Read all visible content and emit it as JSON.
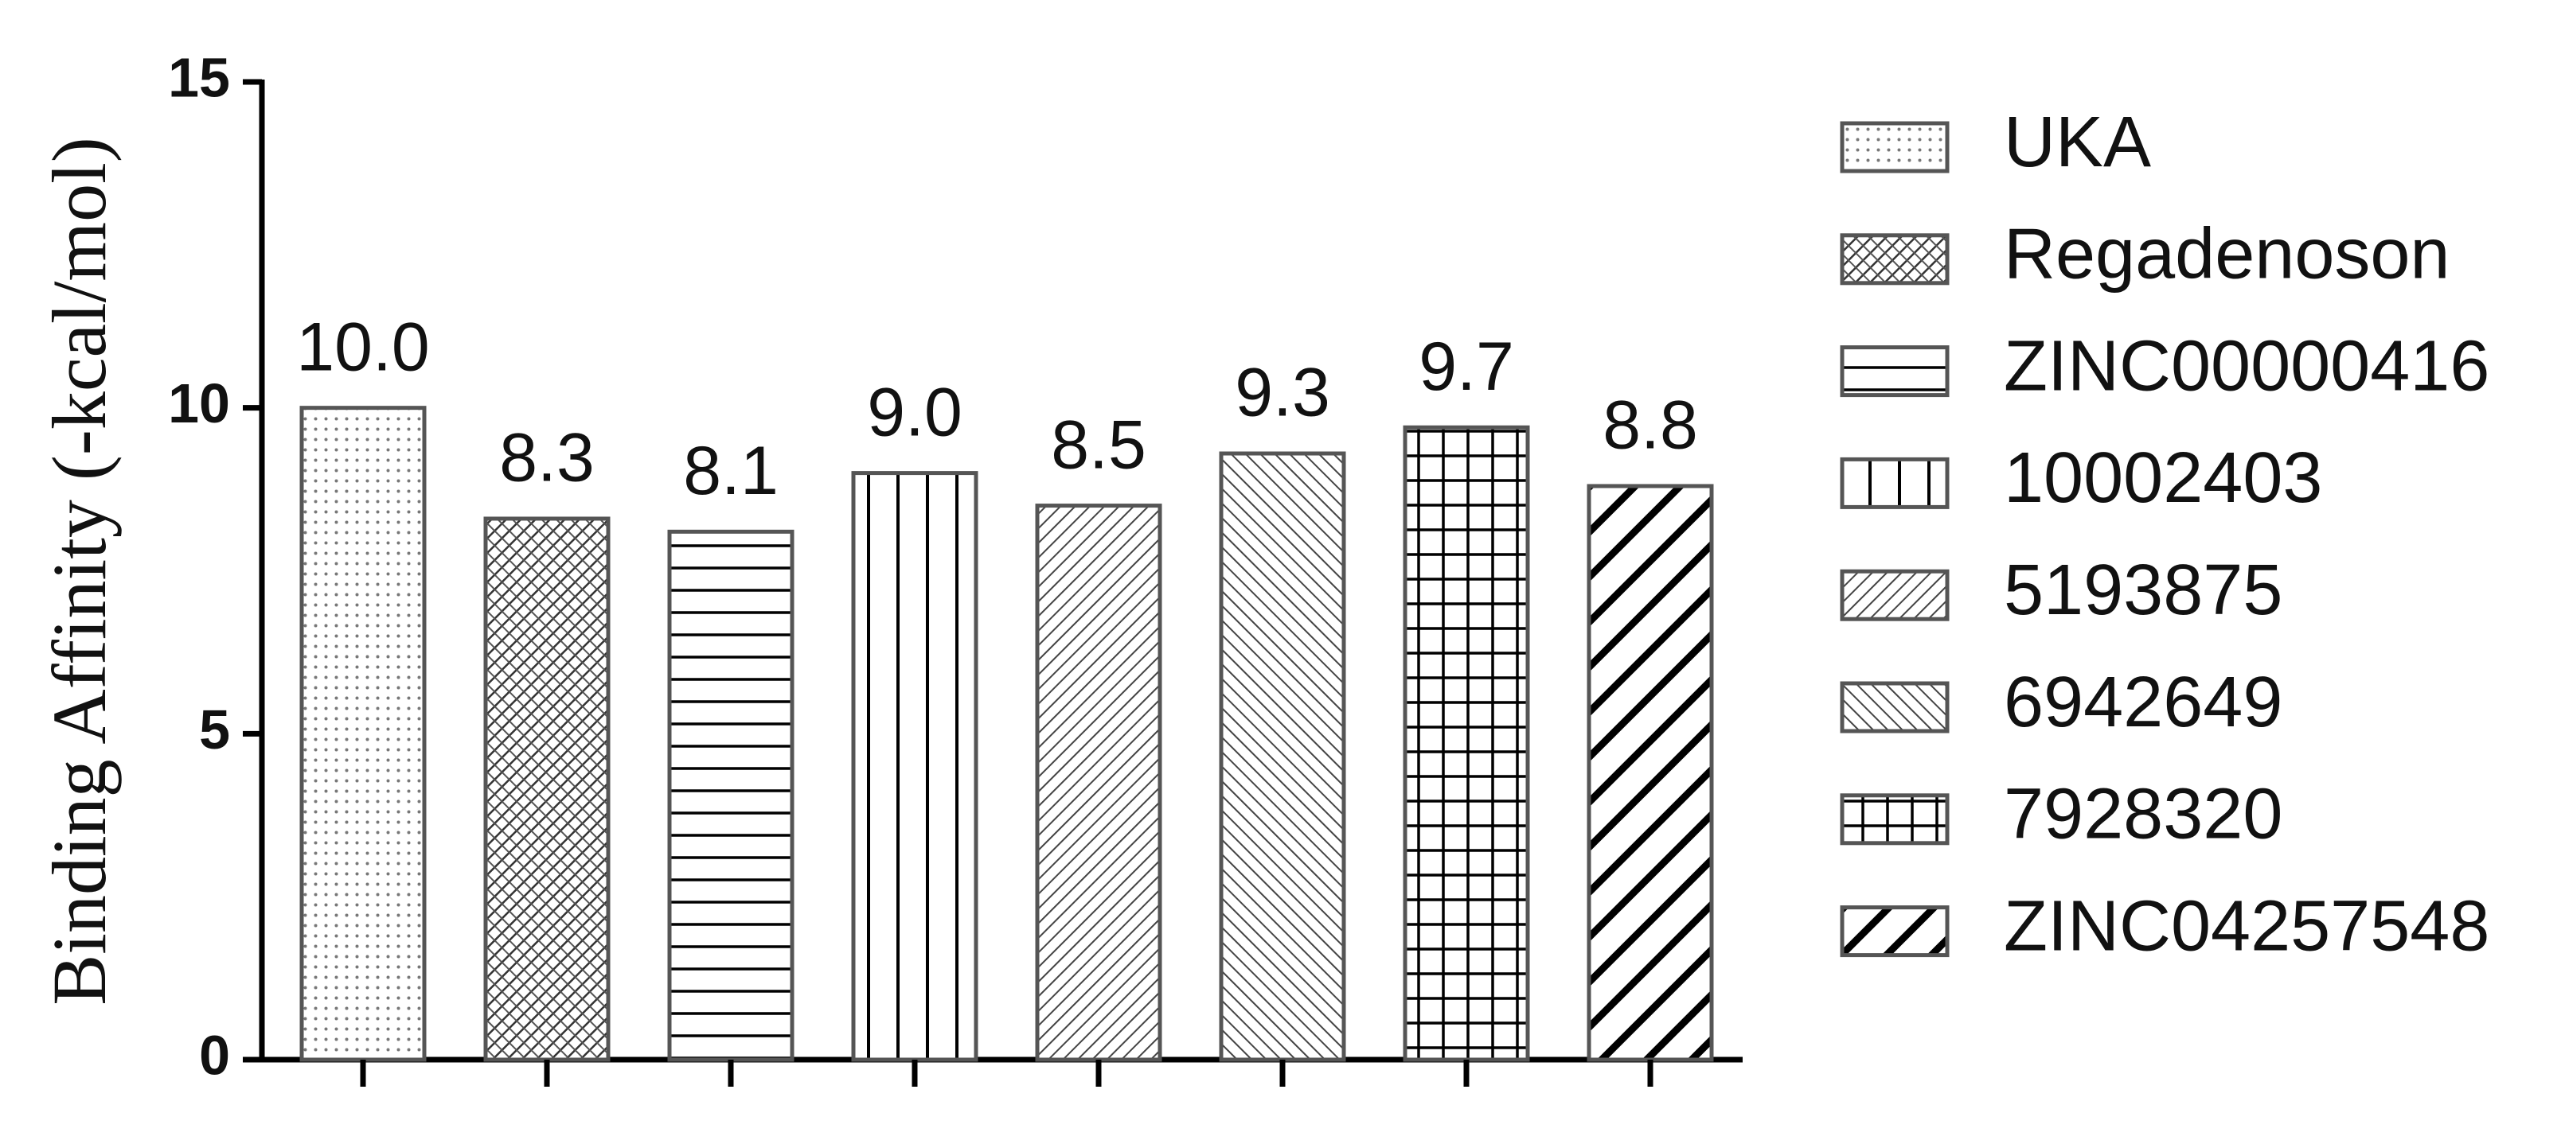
{
  "chart_data": {
    "type": "bar",
    "y_label": "Binding Affinity (-kcal/mol)",
    "categories": [
      "UKA",
      "Regadenoson",
      "ZINC00000416",
      "10002403",
      "5193875",
      "6942649",
      "7928320",
      "ZINC04257548"
    ],
    "values": [
      10.0,
      8.3,
      8.1,
      9.0,
      8.5,
      9.3,
      9.7,
      8.8
    ],
    "value_labels": [
      "10.0",
      "8.3",
      "8.1",
      "9.0",
      "8.5",
      "9.3",
      "9.7",
      "8.8"
    ],
    "patterns": [
      "dots",
      "crosshatch",
      "horizontal",
      "vertical",
      "diagonal-up",
      "diagonal-down",
      "grid",
      "thick-diagonal"
    ],
    "color": "#000000",
    "ylim": [
      0,
      15
    ],
    "yticks": [
      0,
      5,
      10,
      15
    ],
    "grid": false,
    "legend": "right"
  }
}
